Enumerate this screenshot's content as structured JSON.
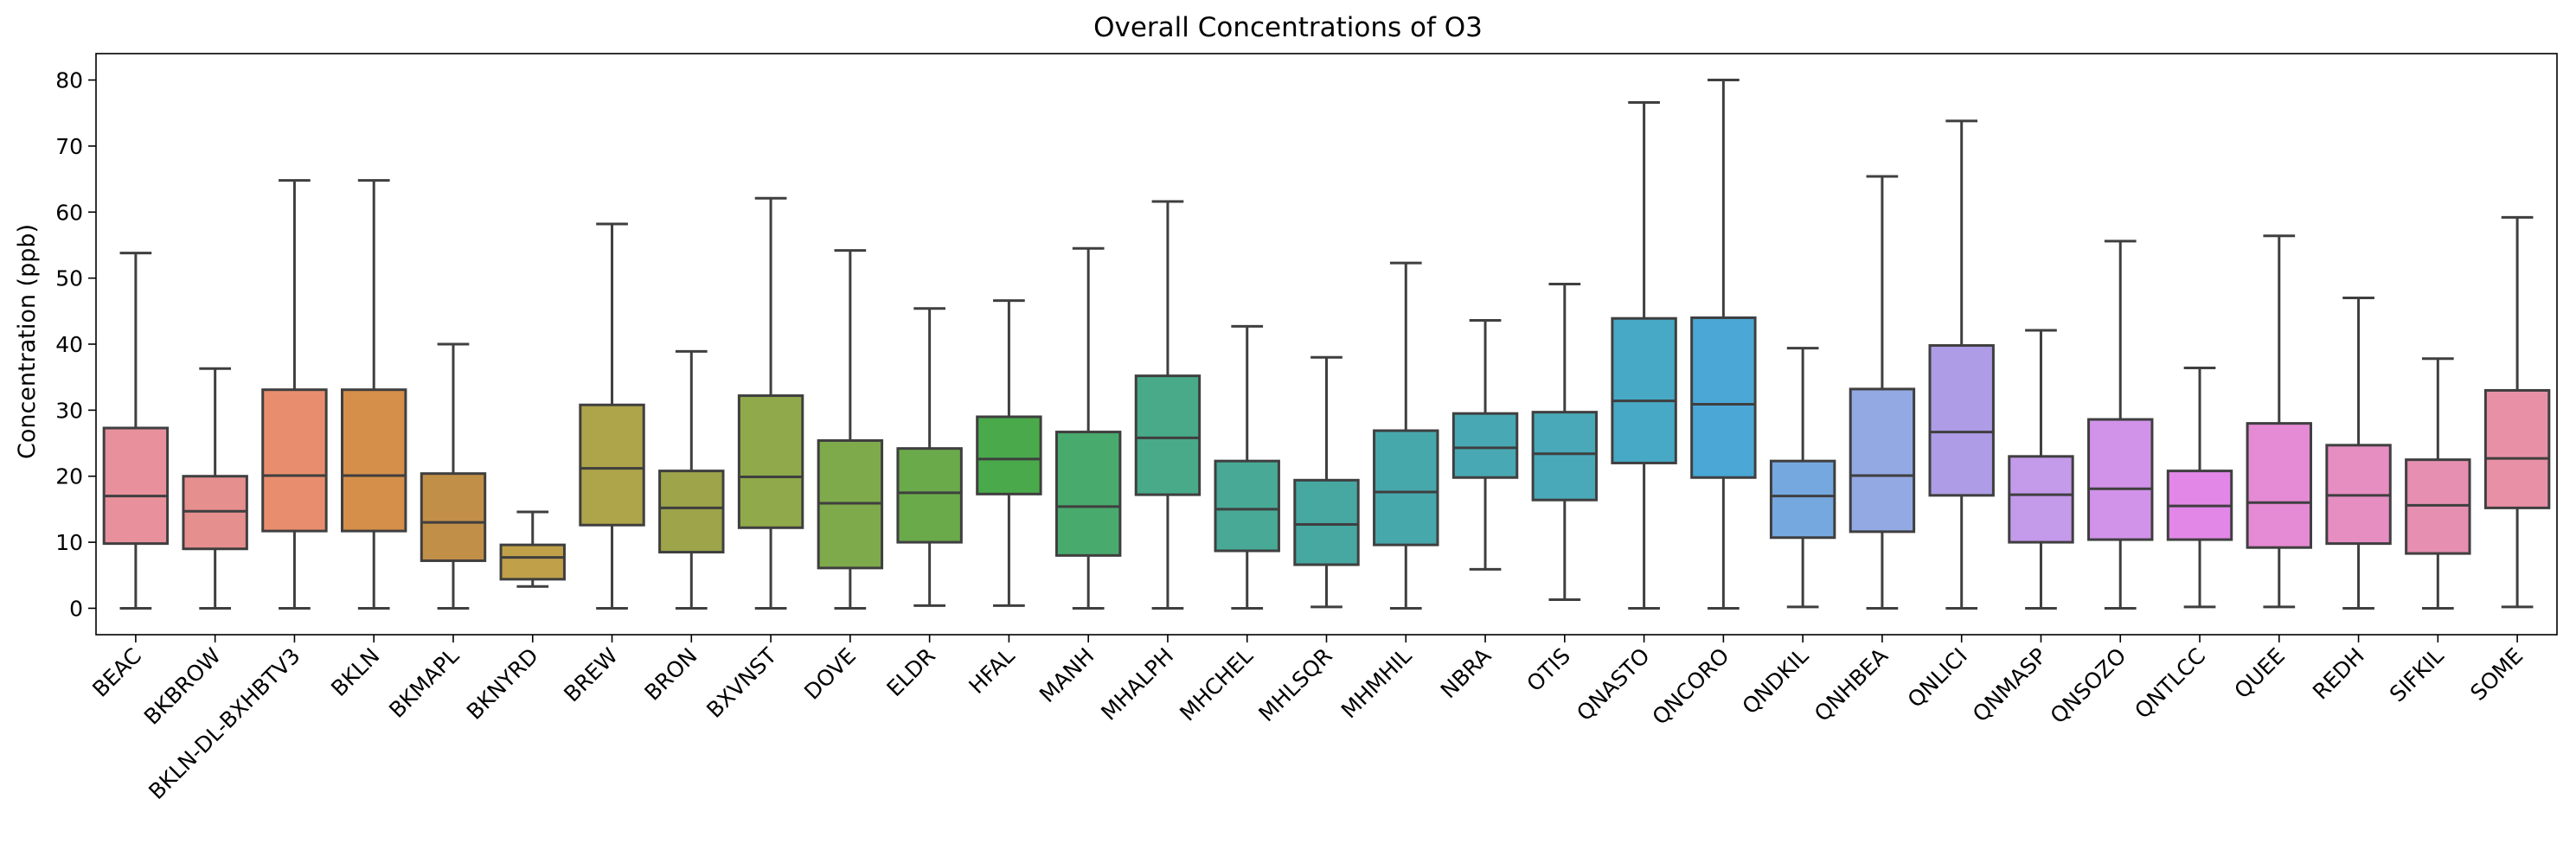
{
  "chart_data": {
    "type": "box",
    "title": "Overall Concentrations of O3",
    "xlabel": "",
    "ylabel": "Concentration (ppb)",
    "ylim": [
      -4,
      84
    ],
    "yticks": [
      0,
      10,
      20,
      30,
      40,
      50,
      60,
      70,
      80
    ],
    "grid": false,
    "legend": "none",
    "categories": [
      "BEAC",
      "BKBROW",
      "BKLN-DL-BXHBTV3",
      "BKLN",
      "BKMAPL",
      "BKNYRD",
      "BREW",
      "BRON",
      "BXVNST",
      "DOVE",
      "ELDR",
      "HFAL",
      "MANH",
      "MHALPH",
      "MHCHEL",
      "MHLSQR",
      "MHMHIL",
      "NBRA",
      "OTIS",
      "QNASTO",
      "QNCORO",
      "QNDKIL",
      "QNHBEA",
      "QNLICI",
      "QNMASP",
      "QNSOZO",
      "QNTLCC",
      "QUEE",
      "REDH",
      "SIFKIL",
      "SOME"
    ],
    "colors": [
      "#e8919d",
      "#e68f8f",
      "#e88e6e",
      "#d58f4a",
      "#c28f49",
      "#c0a14a",
      "#aea44a",
      "#9da44a",
      "#8fa94b",
      "#7faa4b",
      "#6aaa4b",
      "#4aaa4b",
      "#49aa6e",
      "#49aa89",
      "#48a996",
      "#47a7a1",
      "#47a8ac",
      "#48a8b3",
      "#49a9b9",
      "#48a9c6",
      "#4aa7d6",
      "#75a8df",
      "#93a9e3",
      "#ae9ce6",
      "#c49aea",
      "#d193ea",
      "#e287e8",
      "#e58ad4",
      "#e68ec2",
      "#e68fb1",
      "#e890a5"
    ],
    "boxes": [
      {
        "whisker_low": 0,
        "q1": 9.8,
        "median": 17,
        "q3": 27.3,
        "whisker_high": 53.8
      },
      {
        "whisker_low": 0,
        "q1": 9,
        "median": 14.7,
        "q3": 20,
        "whisker_high": 36.3
      },
      {
        "whisker_low": 0,
        "q1": 11.7,
        "median": 20.1,
        "q3": 33.1,
        "whisker_high": 64.8
      },
      {
        "whisker_low": 0,
        "q1": 11.7,
        "median": 20.1,
        "q3": 33.1,
        "whisker_high": 64.8
      },
      {
        "whisker_low": 0,
        "q1": 7.2,
        "median": 13,
        "q3": 20.4,
        "whisker_high": 40
      },
      {
        "whisker_low": 3.3,
        "q1": 4.4,
        "median": 7.7,
        "q3": 9.6,
        "whisker_high": 14.6
      },
      {
        "whisker_low": 0,
        "q1": 12.6,
        "median": 21.2,
        "q3": 30.8,
        "whisker_high": 58.2
      },
      {
        "whisker_low": 0,
        "q1": 8.5,
        "median": 15.2,
        "q3": 20.8,
        "whisker_high": 38.9
      },
      {
        "whisker_low": 0,
        "q1": 12.2,
        "median": 19.9,
        "q3": 32.2,
        "whisker_high": 62.1
      },
      {
        "whisker_low": 0,
        "q1": 6.1,
        "median": 15.9,
        "q3": 25.4,
        "whisker_high": 54.2
      },
      {
        "whisker_low": 0.4,
        "q1": 10,
        "median": 17.5,
        "q3": 24.2,
        "whisker_high": 45.4
      },
      {
        "whisker_low": 0.4,
        "q1": 17.3,
        "median": 22.6,
        "q3": 29,
        "whisker_high": 46.6
      },
      {
        "whisker_low": 0,
        "q1": 8,
        "median": 15.4,
        "q3": 26.7,
        "whisker_high": 54.5
      },
      {
        "whisker_low": 0,
        "q1": 17.2,
        "median": 25.8,
        "q3": 35.2,
        "whisker_high": 61.6
      },
      {
        "whisker_low": 0,
        "q1": 8.7,
        "median": 15,
        "q3": 22.3,
        "whisker_high": 42.7
      },
      {
        "whisker_low": 0.2,
        "q1": 6.6,
        "median": 12.7,
        "q3": 19.4,
        "whisker_high": 38
      },
      {
        "whisker_low": 0,
        "q1": 9.6,
        "median": 17.6,
        "q3": 26.9,
        "whisker_high": 52.3
      },
      {
        "whisker_low": 5.9,
        "q1": 19.8,
        "median": 24.3,
        "q3": 29.5,
        "whisker_high": 43.6
      },
      {
        "whisker_low": 1.3,
        "q1": 16.4,
        "median": 23.4,
        "q3": 29.7,
        "whisker_high": 49.1
      },
      {
        "whisker_low": 0,
        "q1": 22,
        "median": 31.4,
        "q3": 43.9,
        "whisker_high": 76.6
      },
      {
        "whisker_low": 0,
        "q1": 19.8,
        "median": 30.9,
        "q3": 44,
        "whisker_high": 80
      },
      {
        "whisker_low": 0.2,
        "q1": 10.7,
        "median": 17,
        "q3": 22.3,
        "whisker_high": 39.4
      },
      {
        "whisker_low": 0,
        "q1": 11.6,
        "median": 20.1,
        "q3": 33.2,
        "whisker_high": 65.4
      },
      {
        "whisker_low": 0,
        "q1": 17.1,
        "median": 26.7,
        "q3": 39.8,
        "whisker_high": 73.8
      },
      {
        "whisker_low": 0,
        "q1": 10,
        "median": 17.2,
        "q3": 23,
        "whisker_high": 42.1
      },
      {
        "whisker_low": 0,
        "q1": 10.4,
        "median": 18.1,
        "q3": 28.6,
        "whisker_high": 55.6
      },
      {
        "whisker_low": 0.2,
        "q1": 10.4,
        "median": 15.5,
        "q3": 20.8,
        "whisker_high": 36.4
      },
      {
        "whisker_low": 0.2,
        "q1": 9.2,
        "median": 16,
        "q3": 28,
        "whisker_high": 56.4
      },
      {
        "whisker_low": 0,
        "q1": 9.8,
        "median": 17.1,
        "q3": 24.7,
        "whisker_high": 47
      },
      {
        "whisker_low": 0,
        "q1": 8.3,
        "median": 15.6,
        "q3": 22.5,
        "whisker_high": 37.8
      },
      {
        "whisker_low": 0.2,
        "q1": 15.2,
        "median": 22.7,
        "q3": 33,
        "whisker_high": 59.2
      }
    ]
  }
}
